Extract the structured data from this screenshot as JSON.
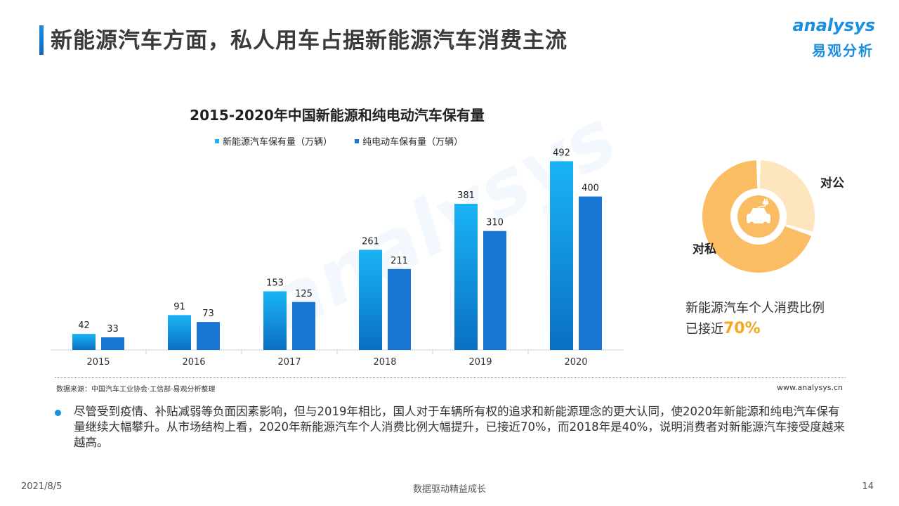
{
  "header": {
    "title": "新能源汽车方面，私人用车占据新能源汽车消费主流"
  },
  "logo": {
    "en": "analysys",
    "cn": "易观分析"
  },
  "watermark": "analysys",
  "colors": {
    "series1_top": "#1ab4f5",
    "series1_bottom": "#0a6fc2",
    "series2": "#1976d2",
    "donut_private": "#fbbd63",
    "donut_public": "#fde5bd",
    "accent": "#f5a623"
  },
  "chart_data": {
    "type": "bar",
    "title": "2015-2020年中国新能源和纯电动汽车保有量",
    "categories": [
      "2015",
      "2016",
      "2017",
      "2018",
      "2019",
      "2020"
    ],
    "series": [
      {
        "name": "新能源汽车保有量（万辆）",
        "values": [
          42,
          91,
          153,
          261,
          381,
          492
        ]
      },
      {
        "name": "纯电动车保有量（万辆）",
        "values": [
          33,
          73,
          125,
          211,
          310,
          400
        ]
      }
    ],
    "ylim": [
      0,
      500
    ],
    "legend": "top",
    "grid": false
  },
  "donut": {
    "type": "pie",
    "labels": {
      "public": "对公",
      "private": "对私"
    },
    "private_share": 0.7
  },
  "insight": {
    "line1": "新能源汽车个人消费比例",
    "line2_prefix": "已接近",
    "line2_value": "70%"
  },
  "source": "数据来源：中国汽车工业协会·工信部·易观分析整理",
  "website": "www.analysys.cn",
  "body_text": "尽管受到疫情、补贴减弱等负面因素影响，但与2019年相比，国人对于车辆所有权的追求和新能源理念的更大认同，使2020年新能源和纯电汽车保有量继续大幅攀升。从市场结构上看，2020年新能源汽车个人消费比例大幅提升，已接近70%，而2018年是40%，说明消费者对新能源汽车接受度越来越高。",
  "footer": {
    "date": "2021/8/5",
    "center": "数据驱动精益成长",
    "page": "14"
  }
}
